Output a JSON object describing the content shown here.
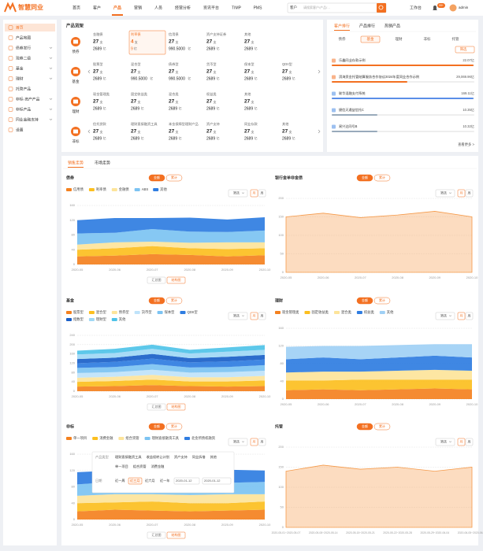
{
  "nav": {
    "logo": "智慧同业",
    "items": [
      "首页",
      "客户",
      "产品",
      "营销",
      "人员",
      "经营分析",
      "资讯平台",
      "TIMP",
      "PMS"
    ],
    "active": 2,
    "search_scope": "客户",
    "search_placeholder": "请搜索客户/产品/…",
    "workbench": "工作台",
    "badge": "99+",
    "user": "admin"
  },
  "sidebar": {
    "items": [
      "首页",
      "产品地图",
      "债券发行",
      "现券二级",
      "基金",
      "理财",
      "托管产品",
      "非标-资产产品",
      "非标产品",
      "同业金融支持",
      "设置"
    ],
    "active": 0
  },
  "shelf": {
    "title": "产品货架",
    "count_unit": "支",
    "amount_unit": "亿",
    "rows": [
      {
        "label": "债券",
        "active": 1,
        "cells": [
          {
            "name": "金融债",
            "count": "27",
            "amount": "2689"
          },
          {
            "name": "利率债",
            "count": "4",
            "amount": "9"
          },
          {
            "name": "信用债",
            "count": "27",
            "amount": "990.5000"
          },
          {
            "name": "资产支持证券",
            "count": "27",
            "amount": "2689"
          },
          {
            "name": "其他",
            "count": "27",
            "amount": "2689"
          }
        ]
      },
      {
        "label": "基金",
        "cells": [
          {
            "name": "股票型",
            "count": "27",
            "amount": "2689"
          },
          {
            "name": "混合型",
            "count": "27",
            "amount": "990.5000"
          },
          {
            "name": "债券型",
            "count": "27",
            "amount": "990.5000"
          },
          {
            "name": "货币型",
            "count": "27",
            "amount": "2689"
          },
          {
            "name": "保本型",
            "count": "27",
            "amount": "2689"
          },
          {
            "name": "QDII型",
            "count": "27",
            "amount": "2689"
          }
        ]
      },
      {
        "label": "理财",
        "cells": [
          {
            "name": "现金管理类",
            "count": "27",
            "amount": "2689"
          },
          {
            "name": "固定收益类",
            "count": "27",
            "amount": "2689"
          },
          {
            "name": "混合类",
            "count": "27",
            "amount": "2689"
          },
          {
            "name": "权益类",
            "count": "27",
            "amount": "2689"
          },
          {
            "name": "其他",
            "count": "27",
            "amount": "2689"
          }
        ]
      },
      {
        "label": "非标",
        "cells": [
          {
            "name": "信托贷款",
            "count": "27",
            "amount": "2689"
          },
          {
            "name": "理财直接融资工具",
            "count": "27",
            "amount": "2689"
          },
          {
            "name": "本金保障型理财产品",
            "count": "27",
            "amount": "2689"
          },
          {
            "name": "资产支持",
            "count": "27",
            "amount": "2689"
          },
          {
            "name": "同业存款",
            "count": "27",
            "amount": "2689"
          },
          {
            "name": "其他",
            "count": "27",
            "amount": "2689"
          }
        ]
      }
    ]
  },
  "ranking": {
    "tabs": [
      "客户排行",
      "产品排行",
      "热销产品"
    ],
    "active_tab": 0,
    "subtabs": [
      "债券",
      "基金",
      "理财",
      "非标",
      "托管"
    ],
    "active_subtab": 1,
    "filter": "筛选",
    "items": [
      {
        "name": "乐鑫同业存款示例",
        "value": "22.07亿"
      },
      {
        "name": "滨海资金托管结算服务合作协议2024年度同业合作示例",
        "value": "29,069.96亿"
      },
      {
        "name": "联华混融支付系统",
        "value": "169.11亿"
      },
      {
        "name": "捷信天通益信托C",
        "value": "10.35亿"
      },
      {
        "name": "易兴达同号B",
        "value": "10.32亿"
      }
    ],
    "more": "查看更多 >"
  },
  "trends": {
    "tabs": [
      "销售走势",
      "市场走势"
    ],
    "active_tab": 0,
    "charts": [
      {
        "type": "area",
        "title": "债券",
        "toggles": [
          "金额",
          "累计"
        ],
        "filter": "筛选",
        "periods": [
          "月",
          "周"
        ],
        "buttons": [
          "汇总图",
          "结构图"
        ],
        "x": [
          "2020-05",
          "2020-06",
          "2020-07",
          "2020-08",
          "2020-09",
          "2020-10"
        ],
        "ylim": [
          0,
          160
        ],
        "yticks": [
          0,
          40,
          80,
          120,
          160
        ],
        "series": [
          {
            "name": "信用债",
            "color": "#f4811f",
            "values": [
              22,
              24,
              28,
              26,
              22,
              25
            ]
          },
          {
            "name": "利率债",
            "color": "#fcbf1f",
            "values": [
              18,
              20,
              22,
              18,
              20,
              19
            ]
          },
          {
            "name": "金融债",
            "color": "#fde49a",
            "values": [
              14,
              16,
              12,
              15,
              18,
              16
            ]
          },
          {
            "name": "ABS",
            "color": "#7cc3f2",
            "values": [
              30,
              26,
              34,
              30,
              28,
              32
            ]
          },
          {
            "name": "其他",
            "color": "#2f7de1",
            "values": [
              36,
              40,
              30,
              38,
              34,
              36
            ]
          }
        ]
      },
      {
        "type": "area",
        "title": "银行金单非金债",
        "toggles": [
          "金额",
          "累计"
        ],
        "filter": "筛选",
        "periods": [
          "月",
          "周"
        ],
        "x": [
          "2020-05",
          "2020-06",
          "2020-07",
          "2020-08",
          "2020-09",
          "2020-10"
        ],
        "ylim": [
          0,
          200
        ],
        "yticks": [
          0,
          50,
          100,
          150,
          200
        ],
        "series": [
          {
            "color": "#f59a4a",
            "values": [
              150,
              160,
              148,
              155,
              165,
              150
            ]
          }
        ]
      },
      {
        "type": "area",
        "title": "基金",
        "toggles": [
          "金额",
          "累计"
        ],
        "filter": "筛选",
        "periods": [
          "月",
          "周"
        ],
        "buttons": [
          "汇总图",
          "结构图"
        ],
        "x": [
          "2020-05",
          "2020-06",
          "2020-07",
          "2020-08",
          "2020-09",
          "2020-10"
        ],
        "ylim": [
          0,
          240
        ],
        "yticks": [
          0,
          40,
          80,
          120,
          160,
          200,
          240
        ],
        "series": [
          {
            "name": "股票型",
            "color": "#f4811f",
            "values": [
              20,
              22,
              26,
              22,
              20,
              22
            ]
          },
          {
            "name": "混合型",
            "color": "#fcbf1f",
            "values": [
              20,
              22,
              24,
              20,
              22,
              24
            ]
          },
          {
            "name": "债券型",
            "color": "#fde49a",
            "values": [
              18,
              18,
              20,
              18,
              18,
              20
            ]
          },
          {
            "name": "货币型",
            "color": "#bfe3fa",
            "values": [
              20,
              20,
              22,
              20,
              22,
              22
            ]
          },
          {
            "name": "保本型",
            "color": "#7cc3f2",
            "values": [
              22,
              22,
              24,
              22,
              22,
              24
            ]
          },
          {
            "name": "QDII型",
            "color": "#2f7de1",
            "values": [
              20,
              22,
              24,
              22,
              24,
              24
            ]
          },
          {
            "name": "指数型",
            "color": "#1a5fc8",
            "values": [
              18,
              18,
              20,
              18,
              20,
              20
            ]
          },
          {
            "name": "理财型",
            "color": "#9fd8f5",
            "values": [
              20,
              20,
              22,
              20,
              22,
              22
            ]
          },
          {
            "name": "其他",
            "color": "#4fc3e8",
            "values": [
              16,
              18,
              18,
              16,
              18,
              20
            ]
          }
        ]
      },
      {
        "type": "area",
        "title": "理财",
        "toggles": [
          "金额",
          "累计"
        ],
        "filter": "筛选",
        "periods": [
          "月",
          "周"
        ],
        "x": [
          "2020-05",
          "2020-06",
          "2020-07",
          "2020-08",
          "2020-09",
          "2020-10"
        ],
        "ylim": [
          0,
          160
        ],
        "yticks": [
          0,
          40,
          80,
          120,
          160
        ],
        "series": [
          {
            "name": "现金管理类",
            "color": "#f4811f",
            "values": [
              20,
              22,
              20,
              22,
              24,
              22
            ]
          },
          {
            "name": "固定收益类",
            "color": "#fcbf1f",
            "values": [
              22,
              20,
              24,
              22,
              20,
              22
            ]
          },
          {
            "name": "混合类",
            "color": "#fde49a",
            "values": [
              18,
              20,
              18,
              20,
              22,
              20
            ]
          },
          {
            "name": "权益类",
            "color": "#2f7de1",
            "values": [
              30,
              32,
              28,
              30,
              32,
              30
            ]
          },
          {
            "name": "其他",
            "color": "#9fd0f5",
            "values": [
              28,
              26,
              30,
              28,
              26,
              30
            ]
          }
        ]
      },
      {
        "type": "area",
        "title": "非标",
        "toggles": [
          "金额",
          "累计"
        ],
        "filter": "筛选",
        "periods": [
          "月",
          "周"
        ],
        "buttons": [
          "汇总图",
          "结构图"
        ],
        "x": [
          "2020-05",
          "2020-06",
          "2020-07",
          "2020-08",
          "2020-09",
          "2020-10"
        ],
        "ylim": [
          0,
          160
        ],
        "yticks": [
          0,
          40,
          80,
          120,
          160
        ],
        "series": [
          {
            "name": "单一项目",
            "color": "#f4811f",
            "values": [
              20,
              24,
              22,
              20,
              22,
              24
            ]
          },
          {
            "name": "消费金融",
            "color": "#fcbf1f",
            "values": [
              20,
              18,
              22,
              20,
              18,
              20
            ]
          },
          {
            "name": "组合资管",
            "color": "#fde49a",
            "values": [
              18,
              20,
              18,
              20,
              22,
              18
            ]
          },
          {
            "name": "理财直接融资工具",
            "color": "#7cc3f2",
            "values": [
              28,
              30,
              26,
              30,
              28,
              30
            ]
          },
          {
            "name": "北金所债权融资",
            "color": "#2f7de1",
            "values": [
              30,
              28,
              34,
              30,
              32,
              28
            ]
          }
        ]
      },
      {
        "type": "area",
        "title": "托管",
        "toggles": [
          "金额",
          "累计"
        ],
        "filter": "筛选",
        "periods": [
          "月",
          "周"
        ],
        "x": [
          "2020-05-01~2020-05-07",
          "2020-05-08~2020-05-14",
          "2020-05-15~2020-05-21",
          "2020-05-22~2020-05-28",
          "2020-05-29~2020-06-04",
          "2020-06-05~2020-06-11"
        ],
        "ylim": [
          0,
          200
        ],
        "yticks": [
          0,
          50,
          100,
          150,
          200
        ],
        "series": [
          {
            "color": "#f59a4a",
            "values": [
              140,
              155,
              145,
              150,
              140,
              150
            ]
          }
        ]
      }
    ],
    "popup": {
      "type_label": "产品类型",
      "types": [
        "理财直接融资工具",
        "收益权转让计划",
        "资产支持",
        "同业拆借",
        "其他"
      ],
      "types2": [
        "单一项目",
        "组合资管",
        "消费金融"
      ],
      "date_label": "日期",
      "ranges": [
        "近一周",
        "近三月",
        "近六月",
        "近一年"
      ],
      "active_range": 1,
      "date_from": "2020-01-12",
      "date_to": "2020-01-12"
    }
  }
}
